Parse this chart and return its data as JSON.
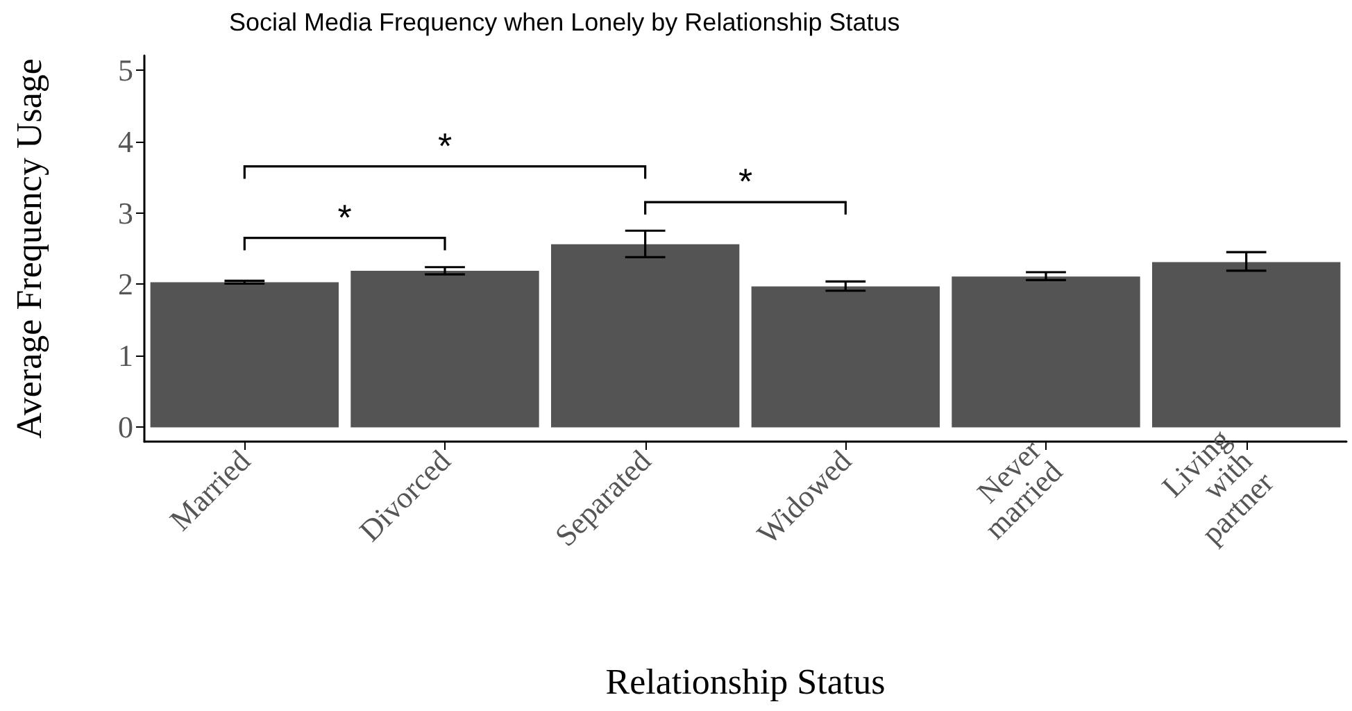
{
  "chart_data": {
    "type": "bar",
    "title": "Social Media Frequency when Lonely by Relationship Status",
    "xlabel": "Relationship Status",
    "ylabel": "Average Frequency Usage",
    "categories": [
      "Married",
      "Divorced",
      "Separated",
      "Widowed",
      "Never married",
      "Living with partner"
    ],
    "values": [
      2.03,
      2.19,
      2.56,
      1.97,
      2.11,
      2.31
    ],
    "errors": [
      [
        2.01,
        2.05
      ],
      [
        2.14,
        2.24
      ],
      [
        2.38,
        2.75
      ],
      [
        1.91,
        2.04
      ],
      [
        2.06,
        2.17
      ],
      [
        2.19,
        2.45
      ]
    ],
    "color": "#545454",
    "ylim": [
      -0.2,
      5.2
    ],
    "yticks": [
      0,
      1,
      2,
      3,
      4,
      5
    ],
    "grid": false,
    "annotations": [
      "*",
      "*",
      "*"
    ]
  }
}
